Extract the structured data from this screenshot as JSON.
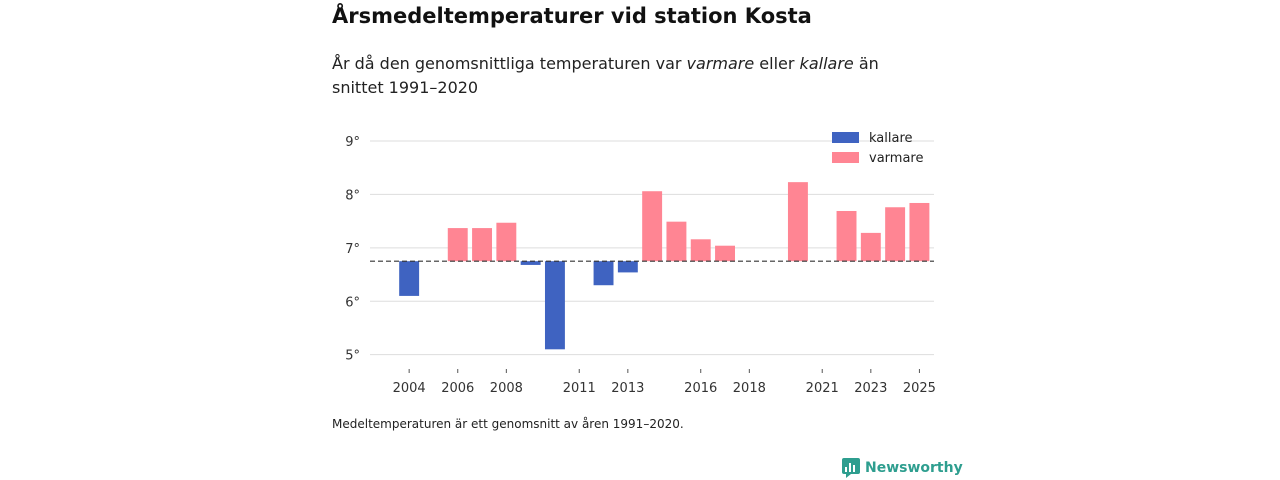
{
  "title": "Årsmedeltemperaturer vid station Kosta",
  "subtitle": {
    "part1": "År då den genomsnittliga temperaturen var ",
    "warm_word": "varmare",
    "part2": " eller ",
    "cold_word": "kallare",
    "part3": " än snittet 1991–2020"
  },
  "note": "Medeltemperaturen är ett genomsnitt av åren 1991–2020.",
  "brand": "Newsworthy",
  "colors": {
    "kallare": "#3f63c1",
    "varmare": "#ff8593",
    "baseline": "#333333",
    "grid": "#dddddd",
    "brand": "#2e9e8f"
  },
  "chart_data": {
    "type": "bar",
    "title": "Årsmedeltemperaturer vid station Kosta",
    "xlabel": "",
    "ylabel": "",
    "baseline": 6.75,
    "ylim": [
      4.9,
      9.3
    ],
    "yticks": [
      5,
      6,
      7,
      8,
      9
    ],
    "ytick_labels": [
      "5°",
      "6°",
      "7°",
      "8°",
      "9°"
    ],
    "xticks": [
      2004,
      2006,
      2008,
      2011,
      2013,
      2016,
      2018,
      2021,
      2023,
      2025
    ],
    "xlim": [
      2003.5,
      2025.6
    ],
    "legend": [
      {
        "key": "kallare",
        "label": "kallare"
      },
      {
        "key": "varmare",
        "label": "varmare"
      }
    ],
    "legend_position": "top-right",
    "points": [
      {
        "year": 2004,
        "value": 6.1,
        "category": "kallare"
      },
      {
        "year": 2006,
        "value": 7.37,
        "category": "varmare"
      },
      {
        "year": 2007,
        "value": 7.37,
        "category": "varmare"
      },
      {
        "year": 2008,
        "value": 7.47,
        "category": "varmare"
      },
      {
        "year": 2009,
        "value": 6.68,
        "category": "kallare"
      },
      {
        "year": 2010,
        "value": 5.1,
        "category": "kallare"
      },
      {
        "year": 2012,
        "value": 6.3,
        "category": "kallare"
      },
      {
        "year": 2013,
        "value": 6.54,
        "category": "kallare"
      },
      {
        "year": 2014,
        "value": 8.06,
        "category": "varmare"
      },
      {
        "year": 2015,
        "value": 7.49,
        "category": "varmare"
      },
      {
        "year": 2016,
        "value": 7.16,
        "category": "varmare"
      },
      {
        "year": 2017,
        "value": 7.04,
        "category": "varmare"
      },
      {
        "year": 2020,
        "value": 8.23,
        "category": "varmare"
      },
      {
        "year": 2022,
        "value": 7.69,
        "category": "varmare"
      },
      {
        "year": 2023,
        "value": 7.28,
        "category": "varmare"
      },
      {
        "year": 2024,
        "value": 7.76,
        "category": "varmare"
      },
      {
        "year": 2025,
        "value": 7.84,
        "category": "varmare"
      }
    ]
  }
}
